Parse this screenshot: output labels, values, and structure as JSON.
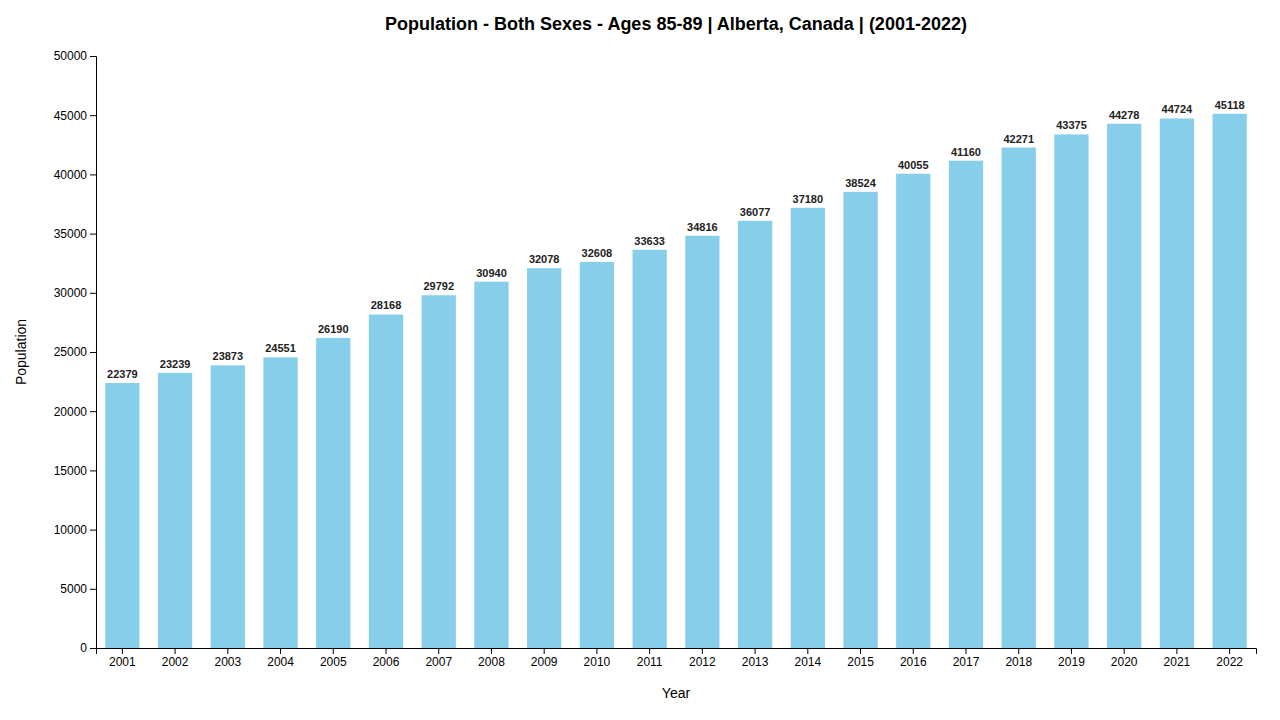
{
  "chart_data": {
    "type": "bar",
    "title": "Population - Both Sexes - Ages 85-89 | Alberta, Canada |  (2001-2022)",
    "x_label": "Year",
    "y_label": "Population",
    "categories": [
      "2001",
      "2002",
      "2003",
      "2004",
      "2005",
      "2006",
      "2007",
      "2008",
      "2009",
      "2010",
      "2011",
      "2012",
      "2013",
      "2014",
      "2015",
      "2016",
      "2017",
      "2018",
      "2019",
      "2020",
      "2021",
      "2022"
    ],
    "values": [
      22379,
      23239,
      23873,
      24551,
      26190,
      28168,
      29792,
      30940,
      32078,
      32608,
      33633,
      34816,
      36077,
      37180,
      38524,
      40055,
      41160,
      42271,
      43375,
      44278,
      44724,
      45118
    ],
    "color": "#87CEEB",
    "ylim": [
      0,
      50000
    ],
    "yticks": [
      0,
      5000,
      10000,
      15000,
      20000,
      25000,
      30000,
      35000,
      40000,
      45000,
      50000
    ],
    "grid": false,
    "data_labels": true
  }
}
